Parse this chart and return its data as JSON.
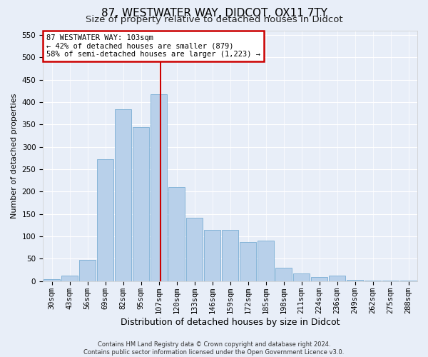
{
  "title": "87, WESTWATER WAY, DIDCOT, OX11 7TY",
  "subtitle": "Size of property relative to detached houses in Didcot",
  "xlabel": "Distribution of detached houses by size in Didcot",
  "ylabel": "Number of detached properties",
  "footer_line1": "Contains HM Land Registry data © Crown copyright and database right 2024.",
  "footer_line2": "Contains public sector information licensed under the Open Government Licence v3.0.",
  "annotation_line1": "87 WESTWATER WAY: 103sqm",
  "annotation_line2": "← 42% of detached houses are smaller (879)",
  "annotation_line3": "58% of semi-detached houses are larger (1,223) →",
  "bar_categories": [
    "30sqm",
    "43sqm",
    "56sqm",
    "69sqm",
    "82sqm",
    "95sqm",
    "107sqm",
    "120sqm",
    "133sqm",
    "146sqm",
    "159sqm",
    "172sqm",
    "185sqm",
    "198sqm",
    "211sqm",
    "224sqm",
    "236sqm",
    "249sqm",
    "262sqm",
    "275sqm",
    "288sqm"
  ],
  "bar_values": [
    5,
    12,
    48,
    272,
    384,
    344,
    418,
    210,
    142,
    115,
    115,
    88,
    90,
    30,
    18,
    10,
    12,
    3,
    2,
    1,
    2
  ],
  "bar_color": "#b8d0ea",
  "bar_edgecolor": "#7aadd4",
  "vline_color": "#cc0000",
  "ylim": [
    0,
    560
  ],
  "yticks": [
    0,
    50,
    100,
    150,
    200,
    250,
    300,
    350,
    400,
    450,
    500,
    550
  ],
  "background_color": "#e8eef8",
  "plot_background": "#e8eef8",
  "annotation_box_color": "#ffffff",
  "annotation_box_edgecolor": "#cc0000",
  "title_fontsize": 11,
  "subtitle_fontsize": 9.5,
  "xlabel_fontsize": 9,
  "ylabel_fontsize": 8,
  "tick_fontsize": 7.5,
  "footer_fontsize": 6,
  "annotation_fontsize": 7.5
}
